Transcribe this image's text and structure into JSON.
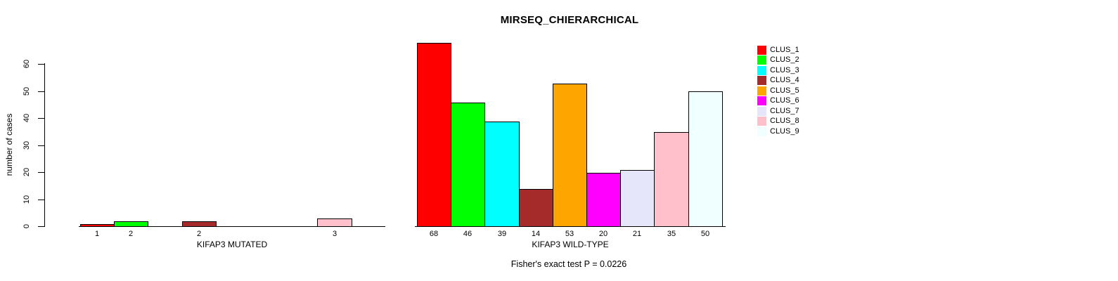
{
  "chart_data": {
    "type": "bar",
    "title": "MIRSEQ_CHIERARCHICAL",
    "ylabel": "number of cases",
    "ylim": [
      0,
      60
    ],
    "yticks": [
      0,
      10,
      20,
      30,
      40,
      50,
      60
    ],
    "grid": false,
    "background": "#FFFFFF",
    "axis_color": "#000000",
    "text_color": "#000000",
    "footer": "Fisher's exact test P = 0.0226",
    "legend": {
      "position": "top-right",
      "entries": [
        {
          "label": "CLUS_1",
          "color": "#FF0000"
        },
        {
          "label": "CLUS_2",
          "color": "#00FF00"
        },
        {
          "label": "CLUS_3",
          "color": "#00FFFF"
        },
        {
          "label": "CLUS_4",
          "color": "#A52A2A"
        },
        {
          "label": "CLUS_5",
          "color": "#FFA500"
        },
        {
          "label": "CLUS_6",
          "color": "#FF00FF"
        },
        {
          "label": "CLUS_7",
          "color": "#E6E6FA"
        },
        {
          "label": "CLUS_8",
          "color": "#FFC0CB"
        },
        {
          "label": "CLUS_9",
          "color": "#F0FFFF"
        }
      ]
    },
    "groups": [
      {
        "id": "mutated",
        "xlabel": "KIFAP3 MUTATED",
        "bars": [
          {
            "cluster": "CLUS_1",
            "value": 1,
            "label": "1"
          },
          {
            "cluster": "CLUS_2",
            "value": 2,
            "label": "2"
          },
          {
            "cluster": "CLUS_3",
            "value": 0,
            "label": ""
          },
          {
            "cluster": "CLUS_4",
            "value": 2,
            "label": "2"
          },
          {
            "cluster": "CLUS_5",
            "value": 0,
            "label": ""
          },
          {
            "cluster": "CLUS_6",
            "value": 0,
            "label": ""
          },
          {
            "cluster": "CLUS_7",
            "value": 0,
            "label": ""
          },
          {
            "cluster": "CLUS_8",
            "value": 3,
            "label": "3"
          },
          {
            "cluster": "CLUS_9",
            "value": 0,
            "label": ""
          }
        ]
      },
      {
        "id": "wildtype",
        "xlabel": "KIFAP3 WILD-TYPE",
        "bars": [
          {
            "cluster": "CLUS_1",
            "value": 68,
            "label": "68"
          },
          {
            "cluster": "CLUS_2",
            "value": 46,
            "label": "46"
          },
          {
            "cluster": "CLUS_3",
            "value": 39,
            "label": "39"
          },
          {
            "cluster": "CLUS_4",
            "value": 14,
            "label": "14"
          },
          {
            "cluster": "CLUS_5",
            "value": 53,
            "label": "53"
          },
          {
            "cluster": "CLUS_6",
            "value": 20,
            "label": "20"
          },
          {
            "cluster": "CLUS_7",
            "value": 21,
            "label": "21"
          },
          {
            "cluster": "CLUS_8",
            "value": 35,
            "label": "35"
          },
          {
            "cluster": "CLUS_9",
            "value": 50,
            "label": "50"
          }
        ]
      }
    ]
  }
}
